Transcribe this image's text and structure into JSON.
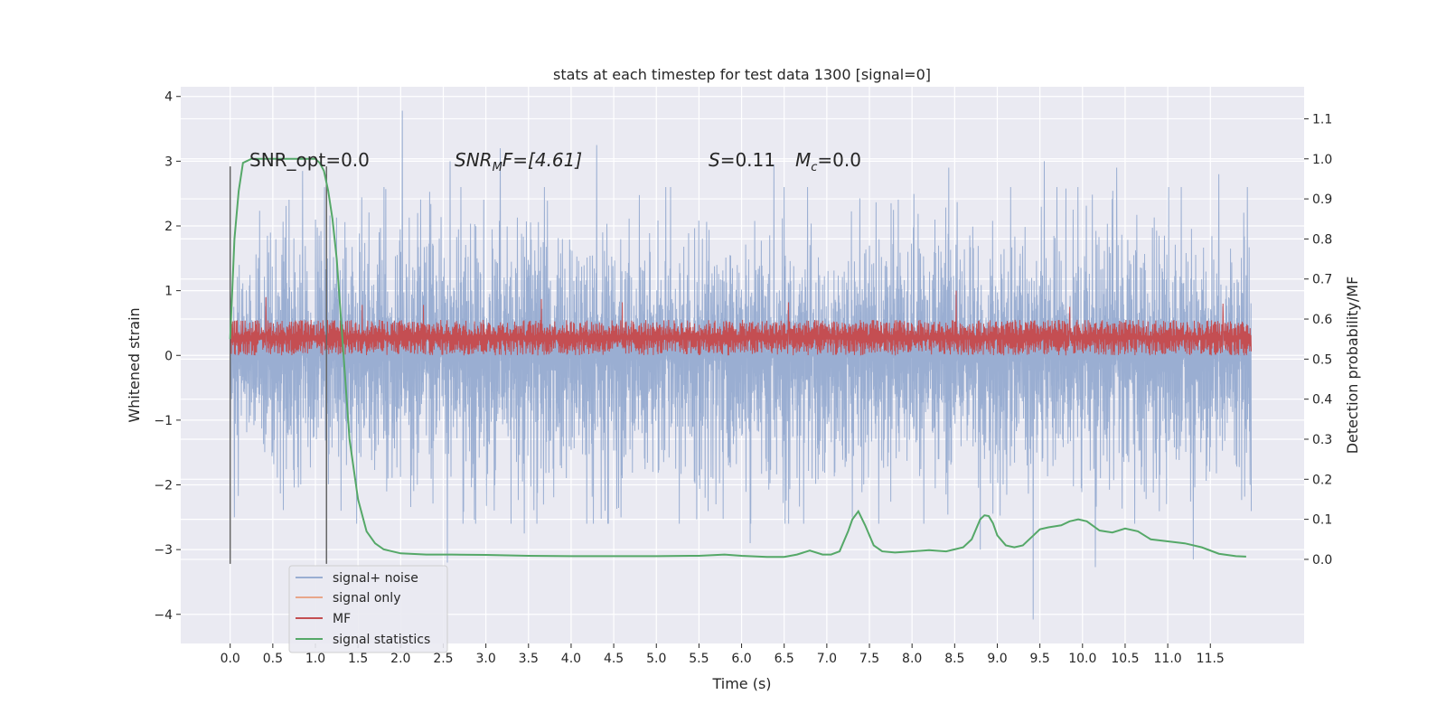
{
  "chart_data": {
    "type": "line",
    "title": "stats at each timestep for test data 1300 [signal=0]",
    "xlabel": "Time (s)",
    "ylabel": "Whitened strain",
    "y2label": "Detection probability/MF",
    "xlim": [
      -0.58,
      12.6
    ],
    "ylim": [
      -4.45,
      4.15
    ],
    "y2lim": [
      -0.21,
      1.18
    ],
    "x_ticks": [
      0.0,
      0.5,
      1.0,
      1.5,
      2.0,
      2.5,
      3.0,
      3.5,
      4.0,
      4.5,
      5.0,
      5.5,
      6.0,
      6.5,
      7.0,
      7.5,
      8.0,
      8.5,
      9.0,
      9.5,
      10.0,
      10.5,
      11.0,
      11.5
    ],
    "x_tick_labels": [
      "0.0",
      "0.5",
      "1.0",
      "1.5",
      "2.0",
      "2.5",
      "3.0",
      "3.5",
      "4.0",
      "4.5",
      "5.0",
      "5.5",
      "6.0",
      "6.5",
      "7.0",
      "7.5",
      "8.0",
      "8.5",
      "9.0",
      "9.5",
      "10.0",
      "10.5",
      "11.0",
      "11.5"
    ],
    "y_ticks": [
      -4,
      -3,
      -2,
      -1,
      0,
      1,
      2,
      3,
      4
    ],
    "y_tick_labels": [
      "−4",
      "−3",
      "−2",
      "−1",
      "0",
      "1",
      "2",
      "3",
      "4"
    ],
    "y2_ticks": [
      0.0,
      0.1,
      0.2,
      0.3,
      0.4,
      0.5,
      0.6,
      0.7,
      0.8,
      0.9,
      1.0,
      1.1
    ],
    "y2_tick_labels": [
      "0.0",
      "0.1",
      "0.2",
      "0.3",
      "0.4",
      "0.5",
      "0.6",
      "0.7",
      "0.8",
      "0.9",
      "1.0",
      "1.1"
    ],
    "grid": true,
    "legend_position": "bottom-left",
    "annotations": {
      "snr_opt": "SNR_opt=0.0",
      "snr_mf_label": "SNR",
      "snr_mf_sub": "M",
      "snr_mf_rest": "F=[4.61]",
      "s_label": "S",
      "s_value": "=0.11",
      "mc_label": "M",
      "mc_sub": "c",
      "mc_value": "=0.0"
    },
    "vlines": [
      0.0,
      1.13
    ],
    "series": [
      {
        "name": "signal+ noise",
        "color": "#9aaed2",
        "axis": "left",
        "t_range": [
          0.0,
          11.98
        ],
        "envelope_upper": [
          [
            0.0,
            1.3
          ],
          [
            0.5,
            1.5
          ],
          [
            1.0,
            1.6
          ],
          [
            1.5,
            1.6
          ],
          [
            2.0,
            1.6
          ],
          [
            3.0,
            1.6
          ],
          [
            4.0,
            1.6
          ],
          [
            5.0,
            1.6
          ],
          [
            6.0,
            1.6
          ],
          [
            7.0,
            1.6
          ],
          [
            8.0,
            1.6
          ],
          [
            9.0,
            1.6
          ],
          [
            10.0,
            1.6
          ],
          [
            11.0,
            1.6
          ],
          [
            11.98,
            1.6
          ]
        ],
        "envelope_lower": [
          [
            0.0,
            -1.3
          ],
          [
            0.5,
            -1.5
          ],
          [
            1.0,
            -1.6
          ],
          [
            2.0,
            -1.6
          ],
          [
            4.0,
            -1.6
          ],
          [
            6.0,
            -1.6
          ],
          [
            8.0,
            -1.6
          ],
          [
            10.0,
            -1.6
          ],
          [
            11.98,
            -1.6
          ]
        ],
        "peaks": [
          [
            2.02,
            3.78
          ],
          [
            0.85,
            2.85
          ],
          [
            2.58,
            3.0
          ],
          [
            3.17,
            3.2
          ],
          [
            4.3,
            3.25
          ],
          [
            6.38,
            2.95
          ],
          [
            8.43,
            2.9
          ],
          [
            9.55,
            3.0
          ],
          [
            10.4,
            2.9
          ],
          [
            11.6,
            2.8
          ],
          [
            9.42,
            -4.08
          ],
          [
            10.15,
            -3.27
          ],
          [
            11.3,
            -3.15
          ],
          [
            2.55,
            -3.2
          ],
          [
            6.1,
            -2.9
          ],
          [
            3.45,
            -2.75
          ],
          [
            8.8,
            -3.0
          ],
          [
            0.05,
            -2.5
          ],
          [
            1.3,
            -2.4
          ],
          [
            4.4,
            -2.4
          ],
          [
            7.3,
            -2.5
          ],
          [
            5.7,
            -2.3
          ]
        ],
        "values": [
          -1.8,
          1.9,
          -2.4,
          2.6,
          -2.0,
          2.1,
          3.78,
          -3.2,
          3.0,
          3.2,
          -2.75,
          3.25,
          -2.4,
          2.95,
          -2.9,
          2.9,
          -3.0,
          3.0,
          -4.08,
          2.9,
          -3.27,
          2.8,
          -3.15
        ]
      },
      {
        "name": "signal only",
        "color": "#e8a68a",
        "axis": "left",
        "values": []
      },
      {
        "name": "MF",
        "color": "#c44e52",
        "axis": "left",
        "t_range": [
          0.0,
          11.98
        ],
        "band": [
          0.0,
          0.55
        ],
        "peaks": [
          [
            0.42,
            0.9
          ],
          [
            1.55,
            0.78
          ],
          [
            2.27,
            0.78
          ],
          [
            3.65,
            0.87
          ],
          [
            4.6,
            0.82
          ],
          [
            6.55,
            0.82
          ],
          [
            8.52,
            1.0
          ],
          [
            9.85,
            0.75
          ],
          [
            11.65,
            0.8
          ]
        ],
        "values": [
          0.0,
          0.55,
          0.9,
          0.78,
          0.78,
          0.87,
          0.82,
          0.82,
          1.0,
          0.75,
          0.8
        ]
      },
      {
        "name": "signal statistics",
        "color": "#55a868",
        "axis": "right",
        "x": [
          0.0,
          0.05,
          0.1,
          0.15,
          0.25,
          0.35,
          0.5,
          0.7,
          0.9,
          1.0,
          1.05,
          1.1,
          1.15,
          1.2,
          1.25,
          1.3,
          1.35,
          1.4,
          1.5,
          1.6,
          1.7,
          1.8,
          2.0,
          2.3,
          2.6,
          3.0,
          3.5,
          4.0,
          4.5,
          5.0,
          5.5,
          5.8,
          6.0,
          6.3,
          6.5,
          6.65,
          6.8,
          6.95,
          7.05,
          7.15,
          7.25,
          7.3,
          7.37,
          7.45,
          7.55,
          7.65,
          7.8,
          8.0,
          8.2,
          8.4,
          8.6,
          8.7,
          8.8,
          8.85,
          8.9,
          8.95,
          9.0,
          9.1,
          9.2,
          9.3,
          9.4,
          9.5,
          9.6,
          9.75,
          9.85,
          9.95,
          10.05,
          10.2,
          10.35,
          10.5,
          10.65,
          10.8,
          11.0,
          11.2,
          11.4,
          11.6,
          11.8,
          11.92
        ],
        "values": [
          0.55,
          0.8,
          0.92,
          0.99,
          1.0,
          1.0,
          1.0,
          1.0,
          1.0,
          1.0,
          0.99,
          0.97,
          0.92,
          0.85,
          0.75,
          0.6,
          0.45,
          0.3,
          0.15,
          0.07,
          0.04,
          0.025,
          0.015,
          0.012,
          0.012,
          0.011,
          0.009,
          0.008,
          0.008,
          0.008,
          0.009,
          0.012,
          0.009,
          0.006,
          0.006,
          0.012,
          0.022,
          0.012,
          0.012,
          0.02,
          0.07,
          0.1,
          0.12,
          0.085,
          0.035,
          0.02,
          0.017,
          0.02,
          0.023,
          0.02,
          0.03,
          0.05,
          0.1,
          0.11,
          0.108,
          0.09,
          0.06,
          0.035,
          0.03,
          0.035,
          0.055,
          0.075,
          0.08,
          0.085,
          0.095,
          0.1,
          0.095,
          0.072,
          0.067,
          0.077,
          0.07,
          0.05,
          0.045,
          0.04,
          0.03,
          0.014,
          0.008,
          0.007
        ]
      }
    ]
  }
}
